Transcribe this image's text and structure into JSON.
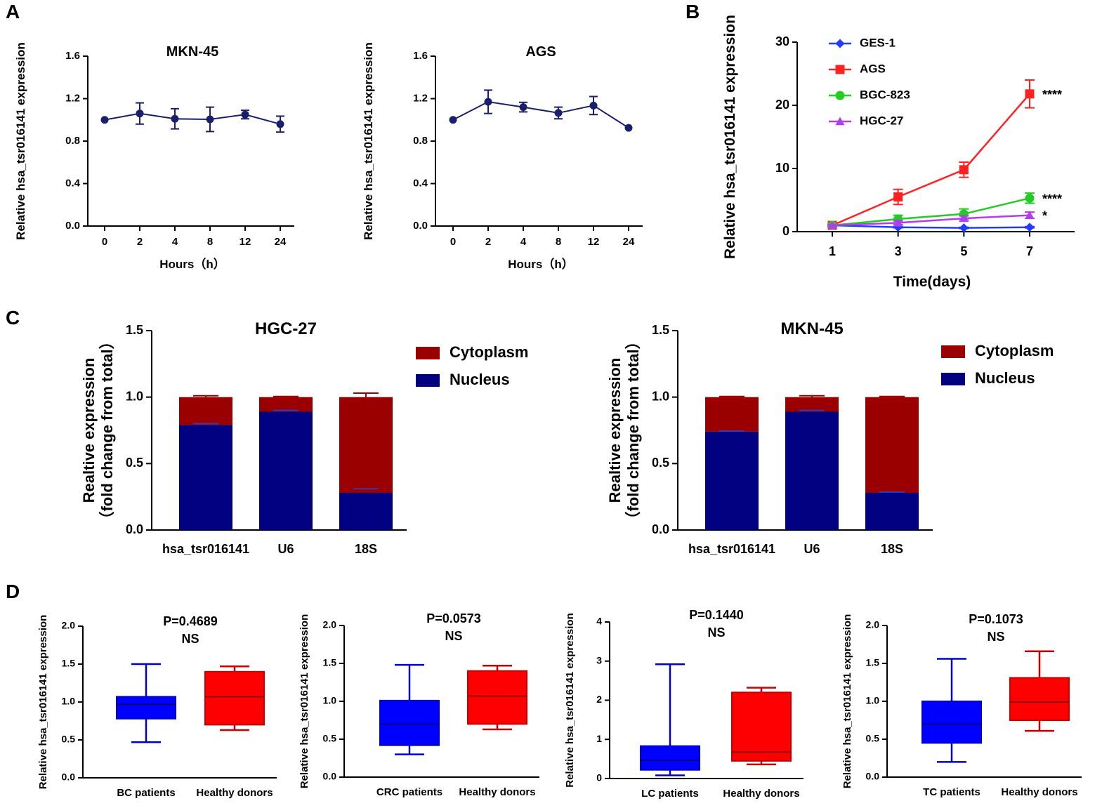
{
  "panel_letters": [
    "A",
    "B",
    "C",
    "D"
  ],
  "chart_data": [
    {
      "id": "A1",
      "type": "line",
      "title": "MKN-45",
      "xlabel": "Hours（h）",
      "ylabel": "Relative hsa_tsr016141 expression",
      "categories": [
        "0",
        "2",
        "4",
        "8",
        "12",
        "24"
      ],
      "ylim": [
        0,
        1.6
      ],
      "yticks": [
        "0.0",
        "0.4",
        "0.8",
        "1.2",
        "1.6"
      ],
      "series": [
        {
          "name": "MKN-45",
          "color": "#1a1f6b",
          "values": [
            1.0,
            1.06,
            1.01,
            1.005,
            1.05,
            0.96
          ],
          "errors": [
            0.0,
            0.1,
            0.095,
            0.115,
            0.04,
            0.075
          ]
        }
      ]
    },
    {
      "id": "A2",
      "type": "line",
      "title": "AGS",
      "xlabel": "Hours（h）",
      "ylabel": "Relative hsa_tsr016141 expression",
      "categories": [
        "0",
        "2",
        "4",
        "8",
        "12",
        "24"
      ],
      "ylim": [
        0,
        1.6
      ],
      "yticks": [
        "0.0",
        "0.4",
        "0.8",
        "1.2",
        "1.6"
      ],
      "series": [
        {
          "name": "AGS",
          "color": "#1a1f6b",
          "values": [
            1.0,
            1.17,
            1.12,
            1.065,
            1.135,
            0.925
          ],
          "errors": [
            0.0,
            0.11,
            0.045,
            0.055,
            0.085,
            0.0
          ]
        }
      ]
    },
    {
      "id": "B",
      "type": "line",
      "xlabel": "Time(days)",
      "ylabel": "Relative hsa_tsr016141 expression",
      "x": [
        1,
        3,
        5,
        7
      ],
      "xticks": [
        "1",
        "3",
        "5",
        "7"
      ],
      "ylim": [
        0,
        30
      ],
      "yticks": [
        "0",
        "10",
        "20",
        "30"
      ],
      "legend_position": "top-left",
      "series": [
        {
          "name": "GES-1",
          "color": "#1f3cff",
          "marker": "diamond",
          "values": [
            1.0,
            0.7,
            0.6,
            0.7
          ],
          "errors": [
            0.2,
            0.1,
            0.1,
            0.1
          ]
        },
        {
          "name": "AGS",
          "color": "#ff2020",
          "marker": "square",
          "values": [
            1.0,
            5.5,
            9.8,
            21.8
          ],
          "errors": [
            0.2,
            1.2,
            1.2,
            2.2
          ],
          "annotation": "****"
        },
        {
          "name": "BGC-823",
          "color": "#22cc22",
          "marker": "circle",
          "values": [
            1.0,
            2.0,
            2.8,
            5.3
          ],
          "errors": [
            0.2,
            0.6,
            0.8,
            0.8
          ],
          "annotation": "****"
        },
        {
          "name": "HGC-27",
          "color": "#b43cf0",
          "marker": "triangle",
          "values": [
            1.0,
            1.4,
            2.1,
            2.6
          ],
          "errors": [
            0.1,
            0.3,
            0.4,
            0.5
          ],
          "annotation": "*"
        }
      ]
    },
    {
      "id": "C1",
      "type": "bar",
      "stacked": true,
      "title": "HGC-27",
      "ylabel": "Realtive expression",
      "ylabel2": "（fold change from total）",
      "categories": [
        "hsa_tsr016141",
        "U6",
        "18S"
      ],
      "ylim": [
        0,
        1.5
      ],
      "yticks": [
        "0.0",
        "0.5",
        "1.0",
        "1.5"
      ],
      "legend_position": "top-right",
      "series": [
        {
          "name": "Nucleus",
          "color": "#000080",
          "values": [
            0.79,
            0.89,
            0.28
          ],
          "errors": [
            0.01,
            0.01,
            0.03
          ]
        },
        {
          "name": "Cytoplasm",
          "color": "#9b0000",
          "values": [
            0.21,
            0.11,
            0.72
          ],
          "errors": [
            0.01,
            0.005,
            0.03
          ]
        }
      ]
    },
    {
      "id": "C2",
      "type": "bar",
      "stacked": true,
      "title": "MKN-45",
      "ylabel": "Realtive expression",
      "ylabel2": "（fold change from total）",
      "categories": [
        "hsa_tsr016141",
        "U6",
        "18S"
      ],
      "ylim": [
        0,
        1.5
      ],
      "yticks": [
        "0.0",
        "0.5",
        "1.0",
        "1.5"
      ],
      "legend_position": "top-right",
      "series": [
        {
          "name": "Nucleus",
          "color": "#000080",
          "values": [
            0.74,
            0.89,
            0.28
          ],
          "errors": [
            0.005,
            0.01,
            0.005
          ]
        },
        {
          "name": "Cytoplasm",
          "color": "#9b0000",
          "values": [
            0.26,
            0.11,
            0.72
          ],
          "errors": [
            0.005,
            0.01,
            0.005
          ]
        }
      ]
    },
    {
      "id": "D1",
      "type": "box",
      "title": "P=0.4689",
      "subtitle": "NS",
      "ylabel": "Relative hsa_tsr016141 expression",
      "categories": [
        "BC patients",
        "Healthy donors"
      ],
      "ylim": [
        0,
        2.0
      ],
      "yticks": [
        "0.0",
        "0.5",
        "1.0",
        "1.5",
        "2.0"
      ],
      "boxes": [
        {
          "name": "BC patients",
          "color": "#0000ff",
          "min": 0.47,
          "q1": 0.78,
          "median": 0.97,
          "q3": 1.07,
          "max": 1.5
        },
        {
          "name": "Healthy donors",
          "color": "#ff0000",
          "min": 0.63,
          "q1": 0.7,
          "median": 1.07,
          "q3": 1.4,
          "max": 1.47
        }
      ]
    },
    {
      "id": "D2",
      "type": "box",
      "title": "P=0.0573",
      "subtitle": "NS",
      "ylabel": "Relative hsa_tsr016141 expression",
      "categories": [
        "CRC patients",
        "Healthy donors"
      ],
      "ylim": [
        0,
        2.0
      ],
      "yticks": [
        "0.0",
        "0.5",
        "1.0",
        "1.5",
        "2.0"
      ],
      "boxes": [
        {
          "name": "CRC patients",
          "color": "#0000ff",
          "min": 0.3,
          "q1": 0.42,
          "median": 0.7,
          "q3": 1.01,
          "max": 1.48
        },
        {
          "name": "Healthy donors",
          "color": "#ff0000",
          "min": 0.63,
          "q1": 0.7,
          "median": 1.07,
          "q3": 1.4,
          "max": 1.47
        }
      ]
    },
    {
      "id": "D3",
      "type": "box",
      "title": "P=0.1440",
      "subtitle": "NS",
      "ylabel": "Relative hsa_tsr016141 expression",
      "categories": [
        "LC patients",
        "Healthy donors"
      ],
      "ylim": [
        0,
        4
      ],
      "yticks": [
        "0",
        "1",
        "2",
        "3",
        "4"
      ],
      "boxes": [
        {
          "name": "LC patients",
          "color": "#0000ff",
          "min": 0.08,
          "q1": 0.22,
          "median": 0.47,
          "q3": 0.83,
          "max": 2.92
        },
        {
          "name": "Healthy donors",
          "color": "#ff0000",
          "min": 0.36,
          "q1": 0.45,
          "median": 0.68,
          "q3": 2.2,
          "max": 2.32
        }
      ]
    },
    {
      "id": "D4",
      "type": "box",
      "title": "P=0.1073",
      "subtitle": "NS",
      "ylabel": "Relative hsa_tsr016141 expression",
      "categories": [
        "TC patients",
        "Healthy donors"
      ],
      "ylim": [
        0,
        2.0
      ],
      "yticks": [
        "0.0",
        "0.5",
        "1.0",
        "1.5",
        "2.0"
      ],
      "boxes": [
        {
          "name": "TC patients",
          "color": "#0000ff",
          "min": 0.2,
          "q1": 0.45,
          "median": 0.7,
          "q3": 1.0,
          "max": 1.56
        },
        {
          "name": "Healthy donors",
          "color": "#ff0000",
          "min": 0.61,
          "q1": 0.75,
          "median": 0.99,
          "q3": 1.31,
          "max": 1.66
        }
      ]
    }
  ]
}
